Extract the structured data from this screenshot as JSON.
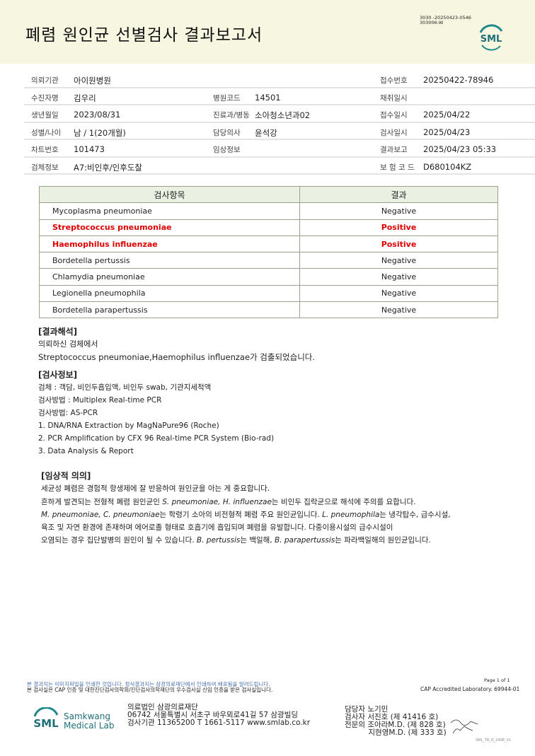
{
  "header": {
    "title": "폐렴 원인균 선별검사 결과보고서",
    "code_lines": [
      "3030 -20250423-0546",
      "303006-W"
    ],
    "logo": "SML"
  },
  "info": [
    [
      [
        "의뢰기관",
        "아이원병원"
      ],
      [
        "",
        ""
      ],
      [
        "접수번호",
        "20250422-78946"
      ]
    ],
    [
      [
        "수진자명",
        "김우리"
      ],
      [
        "병원코드",
        "14501"
      ],
      [
        "채취일시",
        ""
      ]
    ],
    [
      [
        "생년월일",
        "2023/08/31"
      ],
      [
        "진료과/병동",
        "소아청소년과02"
      ],
      [
        "접수일시",
        "2025/04/22"
      ]
    ],
    [
      [
        "성별/나이",
        "남 / 1(20개월)"
      ],
      [
        "담당의사",
        "윤석강"
      ],
      [
        "검사일시",
        "2025/04/23"
      ]
    ],
    [
      [
        "차트번호",
        "101473"
      ],
      [
        "임상정보",
        ""
      ],
      [
        "결과보고",
        "2025/04/23 05:33"
      ]
    ],
    [
      [
        "검체정보",
        "A7:비인후/인후도찰"
      ],
      [
        "",
        ""
      ],
      [
        "보 험 코 드",
        "D680104KZ"
      ]
    ]
  ],
  "results": {
    "headers": [
      "검사항목",
      "결과"
    ],
    "rows": [
      {
        "name": "Mycoplasma pneumoniae",
        "result": "Negative",
        "positive": false
      },
      {
        "name": "Streptococcus pneumoniae",
        "result": "Positive",
        "positive": true
      },
      {
        "name": "Haemophilus influenzae",
        "result": "Positive",
        "positive": true
      },
      {
        "name": "Bordetella pertussis",
        "result": "Negative",
        "positive": false
      },
      {
        "name": "Chlamydia pneumoniae",
        "result": "Negative",
        "positive": false
      },
      {
        "name": "Legionella pneumophila",
        "result": "Negative",
        "positive": false
      },
      {
        "name": "Bordetella parapertussis",
        "result": "Negative",
        "positive": false
      }
    ],
    "positive_color": "#e00000"
  },
  "interpretation": {
    "title": "[결과해석]",
    "lines": [
      "의뢰하신 검체에서",
      "Streptococcus pneumoniae,Haemophilus influenzae가 검출되었습니다."
    ]
  },
  "test_info": {
    "title": "[검사정보]",
    "lines": [
      "검체 : 객담, 비인두흡입액, 비인두 swab, 기관지세척액",
      "검사방법 : Multiplex Real-time PCR",
      "검사방법: AS-PCR",
      "1. DNA/RNA Extraction by MagNaPure96 (Roche)",
      "2. PCR Amplification by CFX 96 Real-time PCR System (Bio-rad)",
      "3. Data Analysis & Report"
    ]
  },
  "clinical": {
    "title": "[임상적 의의]",
    "l1": "세균성 폐렴은 경험적 항생제에 잘 반응하여 원인균을 아는 게 중요합니다.",
    "l2a": "흔하게 발견되는 전형적 폐렴 원인균인 ",
    "l2i": "S. pneumoniae, H. influenzae",
    "l2b": "는 비인두 집락균으로 해석에 주의를 요합니다.",
    "l3i": "M. pneumoniae, C. pneumoniae",
    "l3a": "는 학령기 소아의 비전형적 폐렴 주요 원인균입니다. ",
    "l3i2": "L. pneumophila",
    "l3b": "는 냉각탑수, 급수시설,",
    "l4": "욕조 및 자연 환경에 존재하며 에어로졸 형태로 호흡기에 흡입되며 폐렴을 유발합니다. 다중이용시설의 급수시설이",
    "l5a": "오염되는 경우 집단발병의 원인이 될 수 있습니다. ",
    "l5i": "B. pertussis",
    "l5b": "는 백일해, ",
    "l5i2": "B. parapertussis",
    "l5c": "는 파라백일해의 원인균입니다."
  },
  "footer": {
    "notice1": "본 결과지는 이미지파일을 인쇄한 것입니다. 정식결과지는 삼광의료재단에서 인쇄하여 배포됨을 알려드립니다.",
    "notice2": "본 검사실은 CAP 인증 및 대한진단검사의학회/진단검사의학재단의 우수검사실 신임 인증을 받은 검사실입니다.",
    "page": "Page 1 of 1",
    "cap": "CAP Accredited Laboratory. 69944-01",
    "lab_name1": "Samkwang",
    "lab_name2": "Medical Lab",
    "addr": [
      "의료법인 삼광의료재단",
      "06742 서울특별시 서초구 바우뫼로41길 57 삼광빌딩",
      "검사기관 11365200 T 1661-5117 www.smlab.co.kr"
    ],
    "sign": [
      "담당자 노기민",
      "검사자 서진호 (제 41416 호)",
      "전문의 조아라M.D. (제 828 호)",
      "          지현영M.D. (제 333 호)"
    ],
    "version": "SML_TR_Q_2408_V1"
  },
  "colors": {
    "header_bg": "#f6f6e1",
    "brand": "#1f6f78"
  }
}
